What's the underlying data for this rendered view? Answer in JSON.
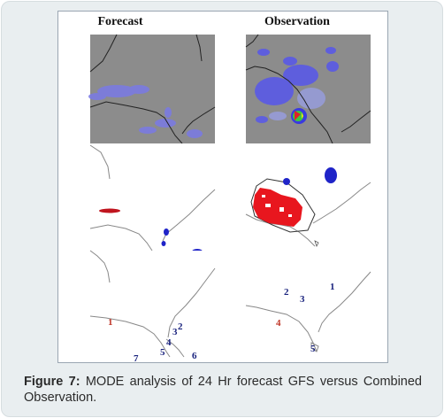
{
  "figure": {
    "columns": [
      "Forecast",
      "Observation"
    ],
    "forecast_labels": [
      {
        "text": "1",
        "color": "#c0392b"
      },
      {
        "text": "2",
        "color": "#1a237e"
      },
      {
        "text": "3",
        "color": "#1a237e"
      },
      {
        "text": "4",
        "color": "#1a237e"
      },
      {
        "text": "5",
        "color": "#1a237e"
      },
      {
        "text": "7",
        "color": "#1a237e"
      },
      {
        "text": "6",
        "color": "#1a237e"
      }
    ],
    "observation_labels": [
      {
        "text": "1",
        "color": "#1a237e"
      },
      {
        "text": "2",
        "color": "#1a237e"
      },
      {
        "text": "3",
        "color": "#1a237e"
      },
      {
        "text": "4",
        "color": "#c0392b"
      },
      {
        "text": "5",
        "color": "#1a237e"
      }
    ]
  },
  "caption": {
    "label": "Figure 7:",
    "text": " MODE analysis of 24 Hr forecast GFS versus Combined Observation."
  }
}
